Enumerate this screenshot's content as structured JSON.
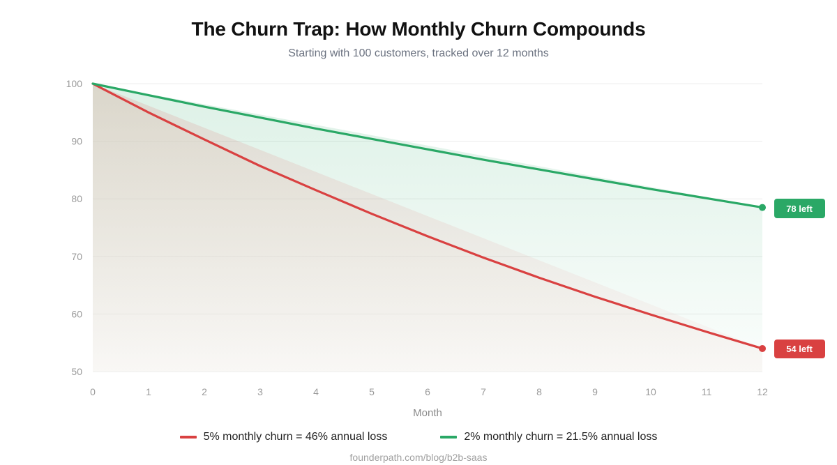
{
  "header": {
    "title": "The Churn Trap: How Monthly Churn Compounds",
    "subtitle": "Starting with 100 customers, tracked over 12 months"
  },
  "axes": {
    "x_label": "Month",
    "x_ticks": [
      "0",
      "1",
      "2",
      "3",
      "4",
      "5",
      "6",
      "7",
      "8",
      "9",
      "10",
      "11",
      "12"
    ],
    "y_ticks": [
      "100",
      "90",
      "80",
      "70",
      "60",
      "50"
    ]
  },
  "badges": {
    "green": "78 left",
    "red": "54 left"
  },
  "legend": {
    "red": "5% monthly churn = 46% annual loss",
    "green": "2% monthly churn = 21.5% annual loss"
  },
  "source": "founderpath.com/blog/b2b-saas",
  "colors": {
    "red": "#d94141",
    "green": "#2aa866",
    "grid": "#ececec",
    "axis_text": "#9a9a9a"
  },
  "chart_data": {
    "type": "line",
    "title": "The Churn Trap: How Monthly Churn Compounds",
    "subtitle": "Starting with 100 customers, tracked over 12 months",
    "xlabel": "Month",
    "ylabel": "",
    "x": [
      0,
      1,
      2,
      3,
      4,
      5,
      6,
      7,
      8,
      9,
      10,
      11,
      12
    ],
    "ylim": [
      50,
      100
    ],
    "xlim": [
      0,
      12
    ],
    "grid": true,
    "legend_position": "bottom",
    "series": [
      {
        "name": "5% monthly churn = 46% annual loss",
        "color": "#d94141",
        "values": [
          100,
          95.0,
          90.3,
          85.7,
          81.5,
          77.4,
          73.5,
          69.8,
          66.3,
          63.0,
          59.9,
          56.9,
          54.0
        ],
        "end_label": "54 left"
      },
      {
        "name": "2% monthly churn = 21.5% annual loss",
        "color": "#2aa866",
        "values": [
          100,
          98.0,
          96.0,
          94.1,
          92.2,
          90.4,
          88.6,
          86.8,
          85.1,
          83.4,
          81.7,
          80.1,
          78.5
        ],
        "end_label": "78 left"
      }
    ],
    "annotations": [
      "78 left",
      "54 left"
    ],
    "source": "founderpath.com/blog/b2b-saas"
  }
}
